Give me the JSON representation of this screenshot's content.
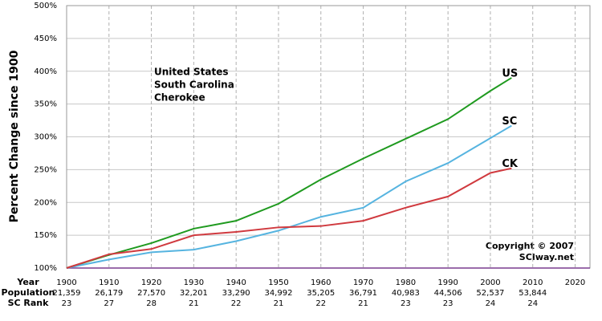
{
  "chart_data": {
    "type": "line",
    "y_label": "Percent Change since 1900",
    "x": [
      1900,
      1910,
      1920,
      1930,
      1940,
      1950,
      1960,
      1970,
      1980,
      1990,
      2000,
      2005
    ],
    "series": [
      {
        "name": "United States",
        "label": "US",
        "color": "#1f9a1f",
        "values": [
          100,
          120,
          138,
          160,
          172,
          198,
          235,
          267,
          297,
          327,
          370,
          390
        ]
      },
      {
        "name": "South Carolina",
        "label": "SC",
        "color": "#56b4e0",
        "values": [
          100,
          113,
          124,
          128,
          141,
          157,
          178,
          192,
          232,
          260,
          298,
          317
        ]
      },
      {
        "name": "Cherokee",
        "label": "CK",
        "color": "#d03a3f",
        "values": [
          100,
          121,
          129,
          150,
          155,
          162,
          164,
          172,
          192,
          209,
          245,
          252
        ]
      }
    ],
    "xlim": [
      1900,
      2023.5
    ],
    "xticks": [
      1900,
      1910,
      1920,
      1930,
      1940,
      1950,
      1960,
      1970,
      1980,
      1990,
      2000,
      2010,
      2020
    ],
    "ylim": [
      100,
      500
    ],
    "yticks": [
      {
        "value": 100,
        "label": "100%"
      },
      {
        "value": 150,
        "label": "150%"
      },
      {
        "value": 200,
        "label": "200%"
      },
      {
        "value": 250,
        "label": "250%"
      },
      {
        "value": 300,
        "label": "300%"
      },
      {
        "value": 350,
        "label": "350%"
      },
      {
        "value": 400,
        "label": "400%"
      },
      {
        "value": 450,
        "label": "450%"
      },
      {
        "value": 500,
        "label": "500%"
      }
    ],
    "grid": true,
    "annotations": [
      "Copyright © 2007",
      "SCIway.net"
    ]
  },
  "table": {
    "row_labels": [
      "Year",
      "Population",
      "SC Rank"
    ],
    "population": [
      "21,359",
      "26,179",
      "27,570",
      "32,201",
      "33,290",
      "34,992",
      "35,205",
      "36,791",
      "40,983",
      "44,506",
      "52,537",
      "53,844"
    ],
    "rank": [
      23,
      27,
      28,
      21,
      22,
      21,
      22,
      21,
      23,
      23,
      24,
      24
    ]
  }
}
